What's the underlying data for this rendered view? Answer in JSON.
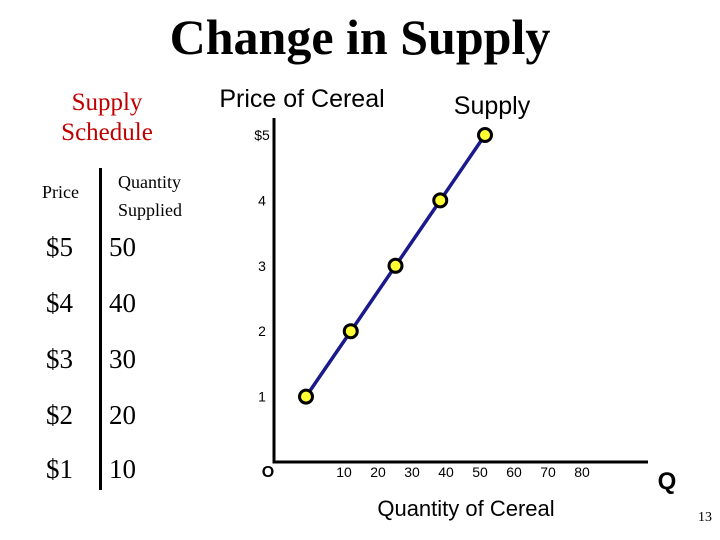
{
  "slide": {
    "title": "Change in Supply",
    "page_number": "13"
  },
  "schedule": {
    "title_line1": "Supply",
    "title_line2": "Schedule",
    "header_price": "Price",
    "header_qty_line1": "Quantity",
    "header_qty_line2": "Supplied",
    "rows": [
      {
        "price": "$5",
        "qty": "50"
      },
      {
        "price": "$4",
        "qty": "40"
      },
      {
        "price": "$3",
        "qty": "30"
      },
      {
        "price": "$2",
        "qty": "20"
      },
      {
        "price": "$1",
        "qty": "10"
      }
    ]
  },
  "colors": {
    "curve": "#1a1a8c",
    "point_fill": "#ffff33",
    "point_stroke": "#000000",
    "schedule_title": "#c00000"
  },
  "chart_data": {
    "type": "line",
    "title": "",
    "ylabel": "Price of Cereal",
    "xlabel": "Quantity of Cereal",
    "x_axis_end_label": "Q",
    "origin_label": "O",
    "x_ticks": [
      "10",
      "20",
      "30",
      "40",
      "50",
      "60",
      "70",
      "80"
    ],
    "y_ticks": [
      "1",
      "2",
      "3",
      "4",
      "$5"
    ],
    "xlim": [
      0,
      80
    ],
    "ylim": [
      0,
      5
    ],
    "grid": false,
    "series": [
      {
        "name": "Supply",
        "x": [
          10,
          20,
          30,
          40,
          50
        ],
        "y": [
          1,
          2,
          3,
          4,
          5
        ]
      }
    ]
  }
}
